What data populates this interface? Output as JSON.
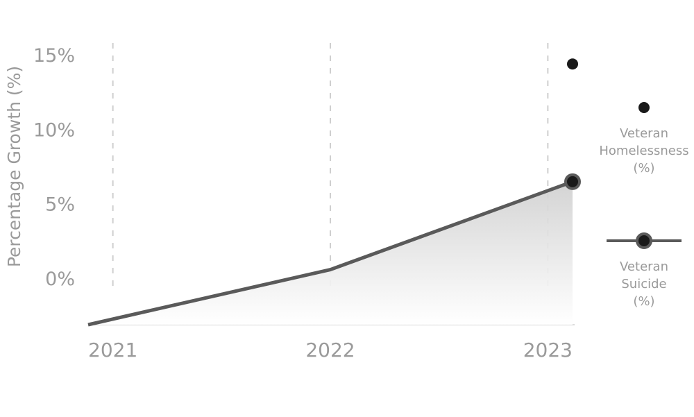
{
  "chart_data": {
    "type": "line",
    "y_label": "Percentage Growth (%)",
    "x": [
      2021,
      2022,
      2023
    ],
    "xticks": [
      2021,
      2022,
      2023
    ],
    "xlim": [
      2021,
      2023
    ],
    "ylim": [
      -3,
      16
    ],
    "yticks": [
      {
        "value": 0,
        "label": "0%"
      },
      {
        "value": 5,
        "label": "5%"
      },
      {
        "value": 10,
        "label": "10%"
      },
      {
        "value": 15,
        "label": "15%"
      }
    ],
    "grid": true,
    "legend": "right",
    "series": [
      {
        "name": "Veteran Homelessness (%)",
        "color": "#1a1a1a",
        "style": "points",
        "values": [
          null,
          null,
          14.5
        ]
      },
      {
        "name": "Veteran Suicide (%)",
        "color": "#5a5a5a",
        "style": "line-area",
        "values": [
          -3,
          0.7,
          6.6
        ]
      }
    ]
  }
}
